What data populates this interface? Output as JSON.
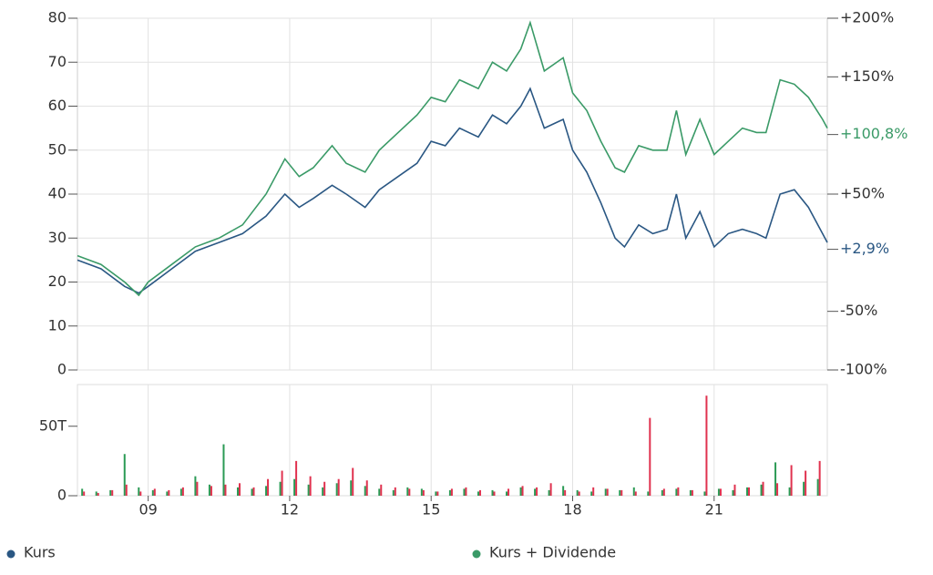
{
  "chart_data": [
    {
      "type": "line",
      "x": [
        2007.5,
        2008.0,
        2008.5,
        2008.8,
        2009.0,
        2009.5,
        2010.0,
        2010.5,
        2011.0,
        2011.5,
        2011.9,
        2012.2,
        2012.5,
        2012.9,
        2013.2,
        2013.6,
        2013.9,
        2014.3,
        2014.7,
        2015.0,
        2015.3,
        2015.6,
        2016.0,
        2016.3,
        2016.6,
        2016.9,
        2017.1,
        2017.4,
        2017.8,
        2018.0,
        2018.3,
        2018.6,
        2018.9,
        2019.1,
        2019.4,
        2019.7,
        2020.0,
        2020.2,
        2020.4,
        2020.7,
        2021.0,
        2021.3,
        2021.6,
        2021.9,
        2022.1,
        2022.4,
        2022.7,
        2023.0,
        2023.3,
        2023.4
      ],
      "series": [
        {
          "name": "Kurs",
          "color": "#2a5783",
          "values": [
            25,
            23,
            19,
            17.5,
            19,
            23,
            27,
            29,
            31,
            35,
            40,
            37,
            39,
            42,
            40,
            37,
            41,
            44,
            47,
            52,
            51,
            55,
            53,
            58,
            56,
            60,
            64,
            55,
            57,
            50,
            45,
            38,
            30,
            28,
            33,
            31,
            32,
            40,
            30,
            36,
            28,
            31,
            32,
            31,
            30,
            40,
            41,
            37,
            31,
            29
          ]
        },
        {
          "name": "Kurs + Dividende",
          "color": "#3a9a67",
          "values": [
            26,
            24,
            20,
            17,
            20,
            24,
            28,
            30,
            33,
            40,
            48,
            44,
            46,
            51,
            47,
            45,
            50,
            54,
            58,
            62,
            61,
            66,
            64,
            70,
            68,
            73,
            79,
            68,
            71,
            63,
            59,
            52,
            46,
            45,
            51,
            50,
            50,
            59,
            49,
            57,
            49,
            52,
            55,
            54,
            54,
            66,
            65,
            62,
            57,
            55
          ]
        }
      ],
      "xlim": [
        2007.5,
        2023.4
      ],
      "xticks": [
        2009,
        2012,
        2015,
        2018,
        2021
      ],
      "ylim": [
        0,
        80
      ],
      "yticks": [
        0,
        10,
        20,
        30,
        40,
        50,
        60,
        70,
        80
      ],
      "y2lim": [
        -100,
        200
      ],
      "y2ticks": [
        {
          "value": -100,
          "label": "-100%"
        },
        {
          "value": -50,
          "label": "-50%"
        },
        {
          "value": 50,
          "label": "+50%"
        },
        {
          "value": 150,
          "label": "+150%"
        },
        {
          "value": 200,
          "label": "+200%"
        }
      ],
      "annotations": [
        {
          "value": 100.8,
          "label": "+100,8%",
          "color": "#3a9a67"
        },
        {
          "value": 2.9,
          "label": "+2,9%",
          "color": "#2a5783"
        }
      ],
      "grid": true,
      "legend": "bottom"
    },
    {
      "type": "bar",
      "x": [
        2007.6,
        2007.9,
        2008.2,
        2008.5,
        2008.8,
        2009.1,
        2009.4,
        2009.7,
        2010.0,
        2010.3,
        2010.6,
        2010.9,
        2011.2,
        2011.5,
        2011.8,
        2012.1,
        2012.4,
        2012.7,
        2013.0,
        2013.3,
        2013.6,
        2013.9,
        2014.2,
        2014.5,
        2014.8,
        2015.1,
        2015.4,
        2015.7,
        2016.0,
        2016.3,
        2016.6,
        2016.9,
        2017.2,
        2017.5,
        2017.8,
        2018.1,
        2018.4,
        2018.7,
        2019.0,
        2019.3,
        2019.6,
        2019.9,
        2020.2,
        2020.5,
        2020.8,
        2021.1,
        2021.4,
        2021.7,
        2022.0,
        2022.3,
        2022.6,
        2022.9,
        2023.2
      ],
      "series": [
        {
          "color": "#2b9a55",
          "values": [
            5,
            3,
            4,
            30,
            6,
            4,
            3,
            5,
            14,
            8,
            37,
            6,
            5,
            7,
            10,
            12,
            8,
            6,
            9,
            11,
            7,
            5,
            4,
            6,
            5,
            3,
            4,
            5,
            3,
            4,
            3,
            6,
            5,
            4,
            7,
            4,
            3,
            5,
            4,
            6,
            3,
            4,
            5,
            4,
            3,
            5,
            4,
            6,
            8,
            24,
            6,
            10,
            12
          ]
        },
        {
          "color": "#e0324f",
          "values": [
            3,
            2,
            4,
            8,
            3,
            5,
            4,
            6,
            10,
            7,
            8,
            9,
            6,
            12,
            18,
            25,
            14,
            10,
            12,
            20,
            11,
            8,
            6,
            5,
            4,
            3,
            5,
            6,
            4,
            3,
            5,
            7,
            6,
            9,
            4,
            3,
            6,
            5,
            4,
            3,
            56,
            5,
            6,
            4,
            72,
            5,
            8,
            6,
            10,
            9,
            22,
            18,
            25
          ]
        }
      ],
      "xlim": [
        2007.5,
        2023.4
      ],
      "xticks": [
        {
          "value": 2009,
          "label": "09"
        },
        {
          "value": 2012,
          "label": "12"
        },
        {
          "value": 2015,
          "label": "15"
        },
        {
          "value": 2018,
          "label": "18"
        },
        {
          "value": 2021,
          "label": "21"
        }
      ],
      "ylim": [
        0,
        80
      ],
      "yticks": [
        0,
        {
          "value": 50,
          "label": "50T"
        }
      ]
    }
  ]
}
